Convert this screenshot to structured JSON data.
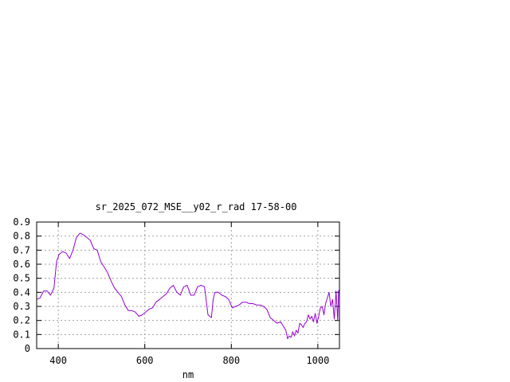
{
  "chart_data": {
    "type": "line",
    "title": "sr_2025_072_MSE__y02_r_rad 17-58-00",
    "xlabel": "nm",
    "ylabel": "",
    "xlim": [
      350,
      1050
    ],
    "ylim": [
      0,
      0.9
    ],
    "xticks": [
      400,
      600,
      800,
      1000
    ],
    "xtick_labels": [
      "400",
      "600",
      "800",
      "1000"
    ],
    "yticks": [
      0,
      0.1,
      0.2,
      0.3,
      0.4,
      0.5,
      0.6,
      0.7,
      0.8,
      0.9
    ],
    "ytick_labels": [
      "0",
      "0.1",
      "0.2",
      "0.3",
      "0.4",
      "0.5",
      "0.6",
      "0.7",
      "0.8",
      "0.9"
    ],
    "grid": true,
    "line_color": "#9400d3",
    "series": [
      {
        "name": "",
        "x": [
          350,
          358,
          366,
          374,
          382,
          390,
          396,
          402,
          410,
          418,
          426,
          434,
          442,
          450,
          458,
          466,
          474,
          482,
          490,
          498,
          506,
          514,
          522,
          530,
          538,
          546,
          554,
          562,
          570,
          578,
          586,
          594,
          602,
          610,
          618,
          626,
          634,
          642,
          650,
          658,
          666,
          674,
          682,
          690,
          698,
          706,
          714,
          722,
          730,
          738,
          746,
          754,
          758,
          762,
          766,
          770,
          778,
          786,
          794,
          802,
          810,
          818,
          826,
          834,
          842,
          850,
          858,
          866,
          874,
          882,
          890,
          898,
          906,
          914,
          922,
          926,
          930,
          934,
          938,
          942,
          946,
          950,
          954,
          958,
          962,
          966,
          970,
          974,
          978,
          982,
          986,
          990,
          994,
          998,
          1002,
          1006,
          1010,
          1014,
          1018,
          1022,
          1026,
          1030,
          1034,
          1038,
          1042,
          1046,
          1048,
          1050
        ],
        "values": [
          0.35,
          0.36,
          0.41,
          0.41,
          0.38,
          0.43,
          0.62,
          0.67,
          0.69,
          0.68,
          0.64,
          0.7,
          0.79,
          0.82,
          0.81,
          0.79,
          0.77,
          0.71,
          0.7,
          0.62,
          0.58,
          0.54,
          0.48,
          0.43,
          0.4,
          0.37,
          0.31,
          0.27,
          0.27,
          0.26,
          0.23,
          0.24,
          0.26,
          0.28,
          0.29,
          0.33,
          0.35,
          0.37,
          0.39,
          0.43,
          0.45,
          0.4,
          0.38,
          0.44,
          0.45,
          0.38,
          0.38,
          0.44,
          0.45,
          0.44,
          0.24,
          0.22,
          0.35,
          0.4,
          0.4,
          0.4,
          0.38,
          0.37,
          0.35,
          0.29,
          0.3,
          0.31,
          0.33,
          0.33,
          0.32,
          0.32,
          0.31,
          0.31,
          0.3,
          0.28,
          0.22,
          0.2,
          0.18,
          0.19,
          0.15,
          0.13,
          0.07,
          0.09,
          0.08,
          0.12,
          0.09,
          0.13,
          0.11,
          0.18,
          0.17,
          0.15,
          0.18,
          0.19,
          0.24,
          0.21,
          0.23,
          0.19,
          0.25,
          0.18,
          0.23,
          0.29,
          0.3,
          0.24,
          0.32,
          0.36,
          0.4,
          0.3,
          0.35,
          0.21,
          0.41,
          0.2,
          0.41,
          0.42
        ]
      }
    ]
  }
}
